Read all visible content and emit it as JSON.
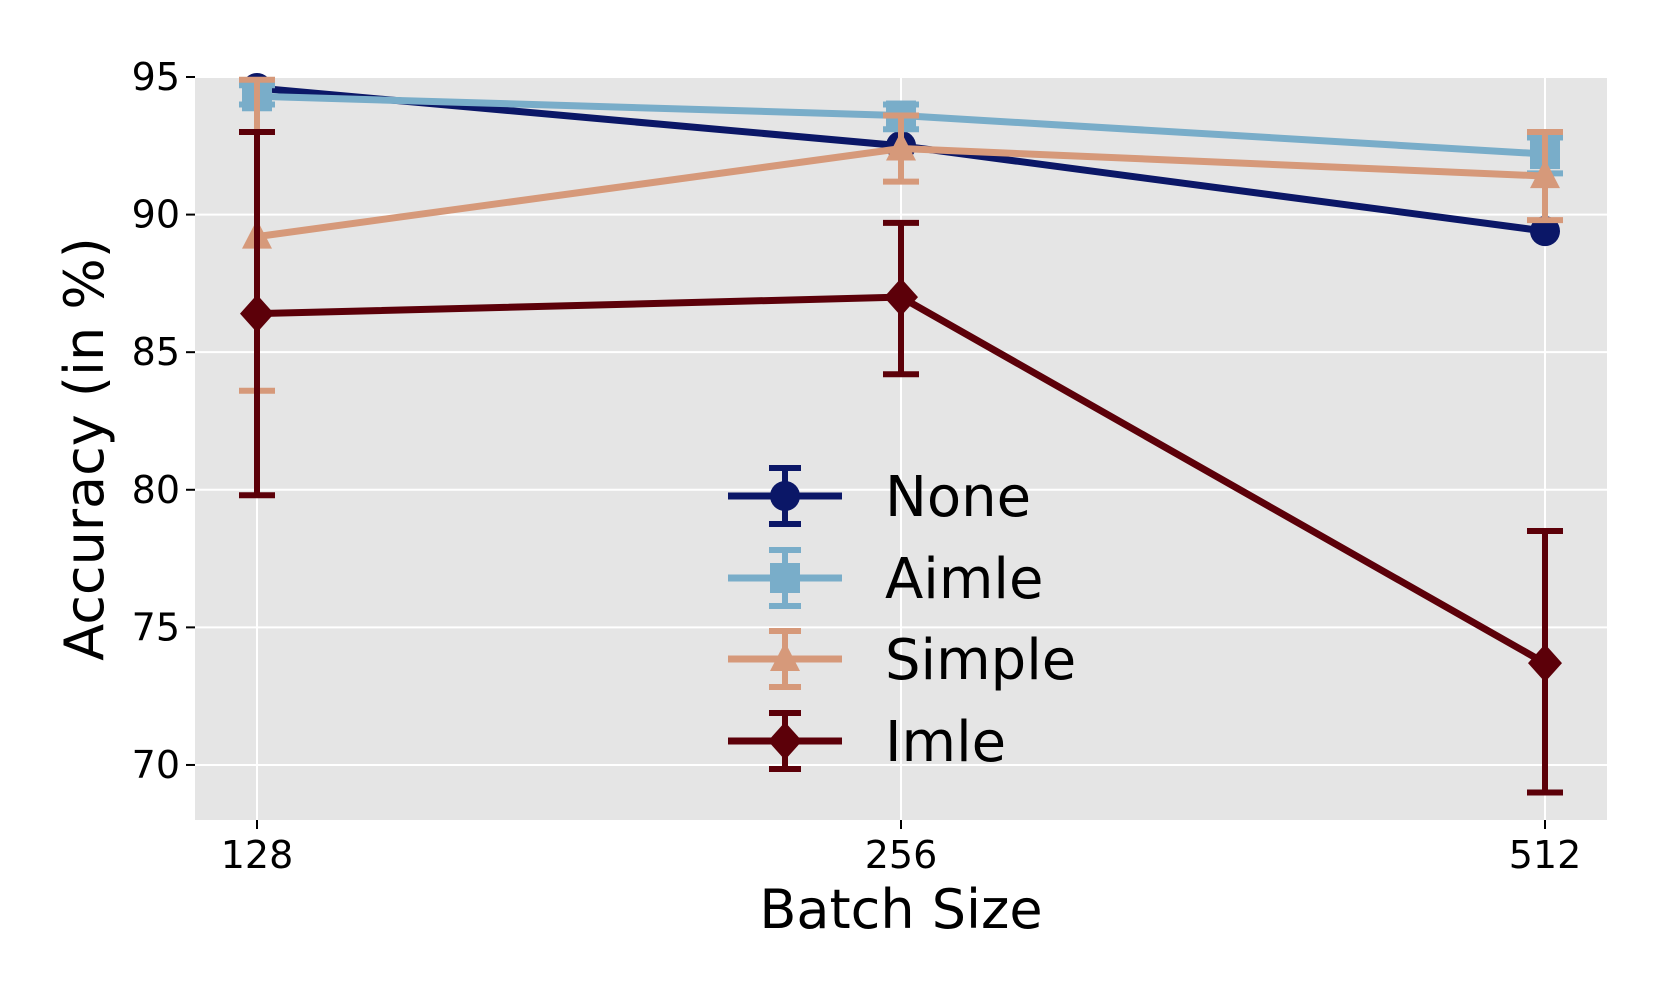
{
  "chart_data": {
    "type": "line",
    "xlabel": "Batch Size",
    "ylabel": "Accuracy (in %)",
    "x": [
      "128",
      "256",
      "512"
    ],
    "ylim": [
      68,
      95
    ],
    "yticks": [
      70,
      75,
      80,
      85,
      90,
      95
    ],
    "grid": true,
    "background": "#e5e5e5",
    "legend_position": "center-bottom",
    "series": [
      {
        "name": "None",
        "marker": "circle",
        "color": "#0b1767",
        "values": [
          94.6,
          92.5,
          89.4
        ],
        "err_low": [
          94.6,
          92.5,
          89.4
        ],
        "err_high": [
          94.6,
          92.5,
          89.4
        ]
      },
      {
        "name": "Aimle",
        "marker": "square",
        "color": "#79adc9",
        "values": [
          94.3,
          93.6,
          92.2
        ],
        "err_low": [
          94.0,
          93.1,
          91.5
        ],
        "err_high": [
          94.7,
          94.0,
          92.8
        ]
      },
      {
        "name": "Simple",
        "marker": "triangle",
        "color": "#d6997a",
        "values": [
          89.2,
          92.4,
          91.4
        ],
        "err_low": [
          83.6,
          91.2,
          89.8
        ],
        "err_high": [
          94.9,
          93.6,
          93.0
        ]
      },
      {
        "name": "Imle",
        "marker": "diamond",
        "color": "#5c0009",
        "values": [
          86.4,
          87.0,
          73.7
        ],
        "err_low": [
          79.8,
          84.2,
          69.0
        ],
        "err_high": [
          93.0,
          89.7,
          78.5
        ]
      }
    ]
  }
}
